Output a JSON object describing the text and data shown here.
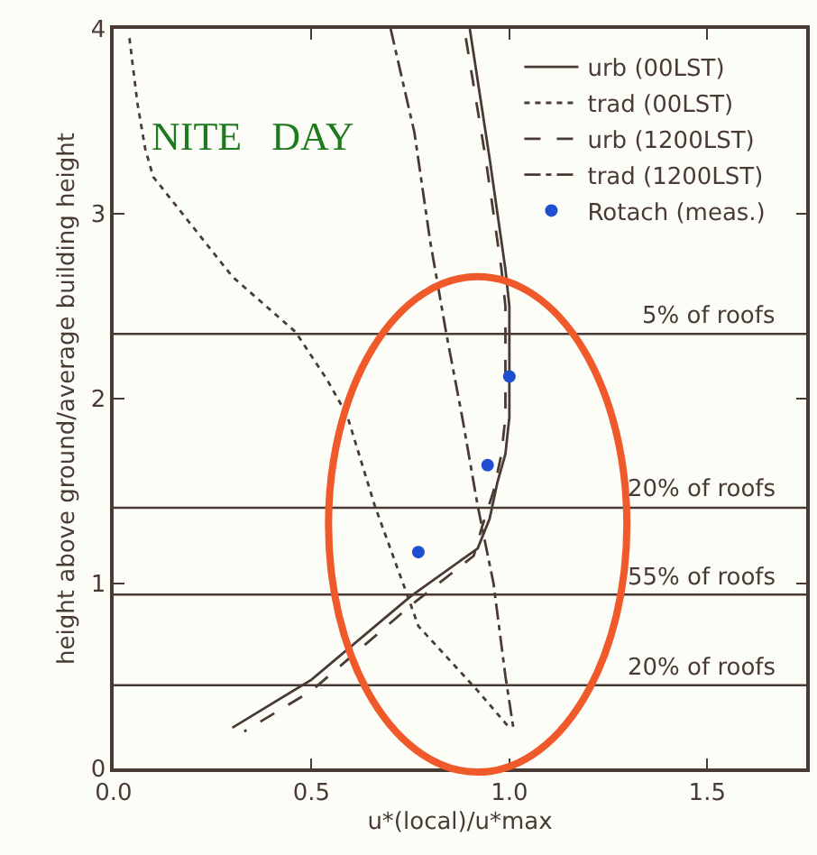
{
  "chart_data": {
    "type": "line",
    "xlabel": "u*(local)/u*max",
    "ylabel": "height above ground/average building height",
    "xlim": [
      0,
      1.75
    ],
    "xticks": [
      {
        "value": 0,
        "label": "0.0"
      },
      0.5,
      {
        "value": 1,
        "label": "1.0"
      },
      1.5
    ],
    "ylim": [
      0,
      4
    ],
    "yticks": [
      0,
      1,
      2,
      3,
      4
    ],
    "grid": false,
    "legend": "top right",
    "annotations": [
      "NITE   DAY"
    ],
    "ref_lines": [
      {
        "axis": "y",
        "value": 2.35,
        "label": "5% of roofs",
        "color": "#4a3a35"
      },
      {
        "axis": "y",
        "value": 1.41,
        "label": "20% of roofs",
        "color": "#4a3a35"
      },
      {
        "axis": "y",
        "value": 0.94,
        "label": "55% of roofs",
        "color": "#4a3a35"
      },
      {
        "axis": "y",
        "value": 0.45,
        "label": "20% of roofs",
        "color": "#4a3a35"
      }
    ],
    "series": [
      {
        "name": "urb (00LST)",
        "color": "#4a3a35",
        "line_style": "solid",
        "x": [
          0.9,
          0.95,
          0.99,
          1.0,
          1.0,
          0.99,
          0.97,
          0.95,
          0.92,
          0.75,
          0.5,
          0.3
        ],
        "values": [
          4.0,
          3.3,
          2.7,
          2.5,
          1.9,
          1.7,
          1.55,
          1.35,
          1.19,
          0.93,
          0.48,
          0.22
        ]
      },
      {
        "name": "trad (00LST)",
        "color": "#4a3a35",
        "line_style": "dotted",
        "x": [
          0.04,
          0.06,
          0.08,
          0.1,
          0.3,
          0.46,
          0.54,
          0.59,
          0.66,
          0.74,
          0.77,
          0.92,
          1.0
        ],
        "values": [
          3.95,
          3.6,
          3.35,
          3.2,
          2.66,
          2.36,
          2.1,
          1.91,
          1.42,
          0.95,
          0.77,
          0.42,
          0.22
        ]
      },
      {
        "name": "urb (1200LST)",
        "color": "#4a3a35",
        "line_style": "dashed",
        "x": [
          0.89,
          0.94,
          0.98,
          0.99,
          0.99,
          0.98,
          0.96,
          0.93,
          0.91,
          0.75,
          0.5,
          0.33
        ],
        "values": [
          3.95,
          3.3,
          2.7,
          2.5,
          1.9,
          1.7,
          1.5,
          1.3,
          1.15,
          0.88,
          0.42,
          0.2
        ]
      },
      {
        "name": "trad (1200LST)",
        "color": "#4a3a35",
        "line_style": "dashdot",
        "x": [
          0.7,
          0.76,
          0.8,
          0.84,
          0.88,
          0.92,
          0.96,
          0.99,
          1.01
        ],
        "values": [
          4.0,
          3.44,
          2.85,
          2.36,
          1.91,
          1.42,
          1.0,
          0.5,
          0.22
        ]
      },
      {
        "name": "Rotach (meas.)",
        "type": "scatter",
        "marker": "circle",
        "color": "#1f4fd0",
        "x": [
          1.0,
          0.945,
          0.77
        ],
        "values": [
          2.12,
          1.64,
          1.17
        ]
      }
    ]
  }
}
